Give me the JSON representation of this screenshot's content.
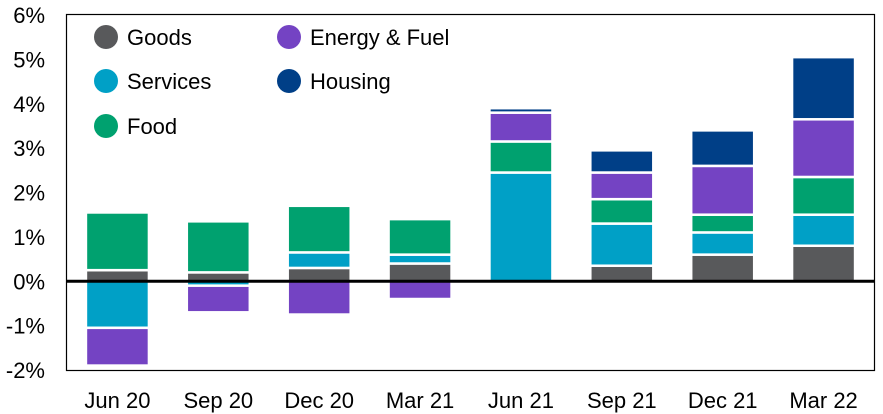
{
  "chart_data": {
    "type": "bar",
    "stacked": true,
    "categories": [
      "Jun 20",
      "Sep 20",
      "Dec 20",
      "Mar 21",
      "Jun 21",
      "Sep 21",
      "Dec 21",
      "Mar 22"
    ],
    "series": [
      {
        "name": "Goods",
        "color": "#58595b",
        "values": [
          0.25,
          0.2,
          0.3,
          0.4,
          0.0,
          0.35,
          0.6,
          0.8
        ]
      },
      {
        "name": "Services",
        "color": "#00a0c6",
        "values": [
          -1.05,
          -0.1,
          0.35,
          0.2,
          2.45,
          0.95,
          0.5,
          0.7
        ]
      },
      {
        "name": "Food",
        "color": "#00a16f",
        "values": [
          1.3,
          1.15,
          1.05,
          0.8,
          0.7,
          0.55,
          0.4,
          0.85
        ]
      },
      {
        "name": "Energy & Fuel",
        "color": "#7443c3",
        "values": [
          -0.85,
          -0.6,
          -0.75,
          -0.4,
          0.65,
          0.6,
          1.1,
          1.3
        ]
      },
      {
        "name": "Housing",
        "color": "#003f87",
        "values": [
          0.0,
          0.0,
          0.0,
          0.0,
          0.1,
          0.5,
          0.8,
          1.4
        ]
      }
    ],
    "ylim": [
      -2,
      6
    ],
    "yticks": [
      -2,
      -1,
      0,
      1,
      2,
      3,
      4,
      5,
      6
    ],
    "ytick_labels": [
      "-2%",
      "-1%",
      "0%",
      "1%",
      "2%",
      "3%",
      "4%",
      "5%",
      "6%"
    ],
    "legend_order": [
      "Goods",
      "Energy & Fuel",
      "Services",
      "Housing",
      "Food"
    ],
    "legend_position": "top-left",
    "grid": false,
    "title": "",
    "xlabel": "",
    "ylabel": ""
  }
}
